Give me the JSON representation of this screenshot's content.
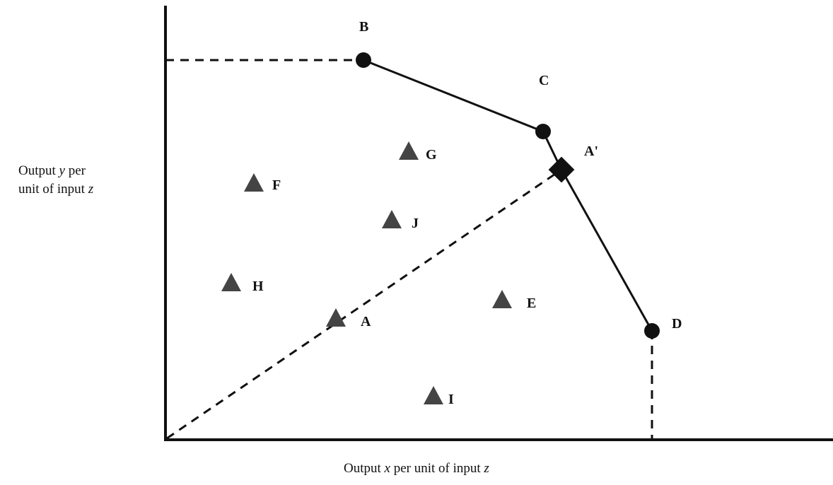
{
  "diagram": {
    "y_axis_label": {
      "prefix": "Output ",
      "var": "y",
      "middle": " per",
      "line2_prefix": "unit of input ",
      "line2_var": "z"
    },
    "x_axis_label": {
      "prefix": "Output ",
      "var": "x",
      "middle": " per unit of input ",
      "suffix_var": "z"
    },
    "frontier_points": [
      {
        "id": "B",
        "label": "B"
      },
      {
        "id": "C",
        "label": "C"
      },
      {
        "id": "A_prime",
        "label": "A'"
      },
      {
        "id": "D",
        "label": "D"
      }
    ],
    "units": [
      {
        "id": "A",
        "label": "A"
      },
      {
        "id": "E",
        "label": "E"
      },
      {
        "id": "F",
        "label": "F"
      },
      {
        "id": "G",
        "label": "G"
      },
      {
        "id": "H",
        "label": "H"
      },
      {
        "id": "I",
        "label": "I"
      },
      {
        "id": "J",
        "label": "J"
      }
    ],
    "colors": {
      "ink": "#111111",
      "triangle": "#444444"
    }
  }
}
